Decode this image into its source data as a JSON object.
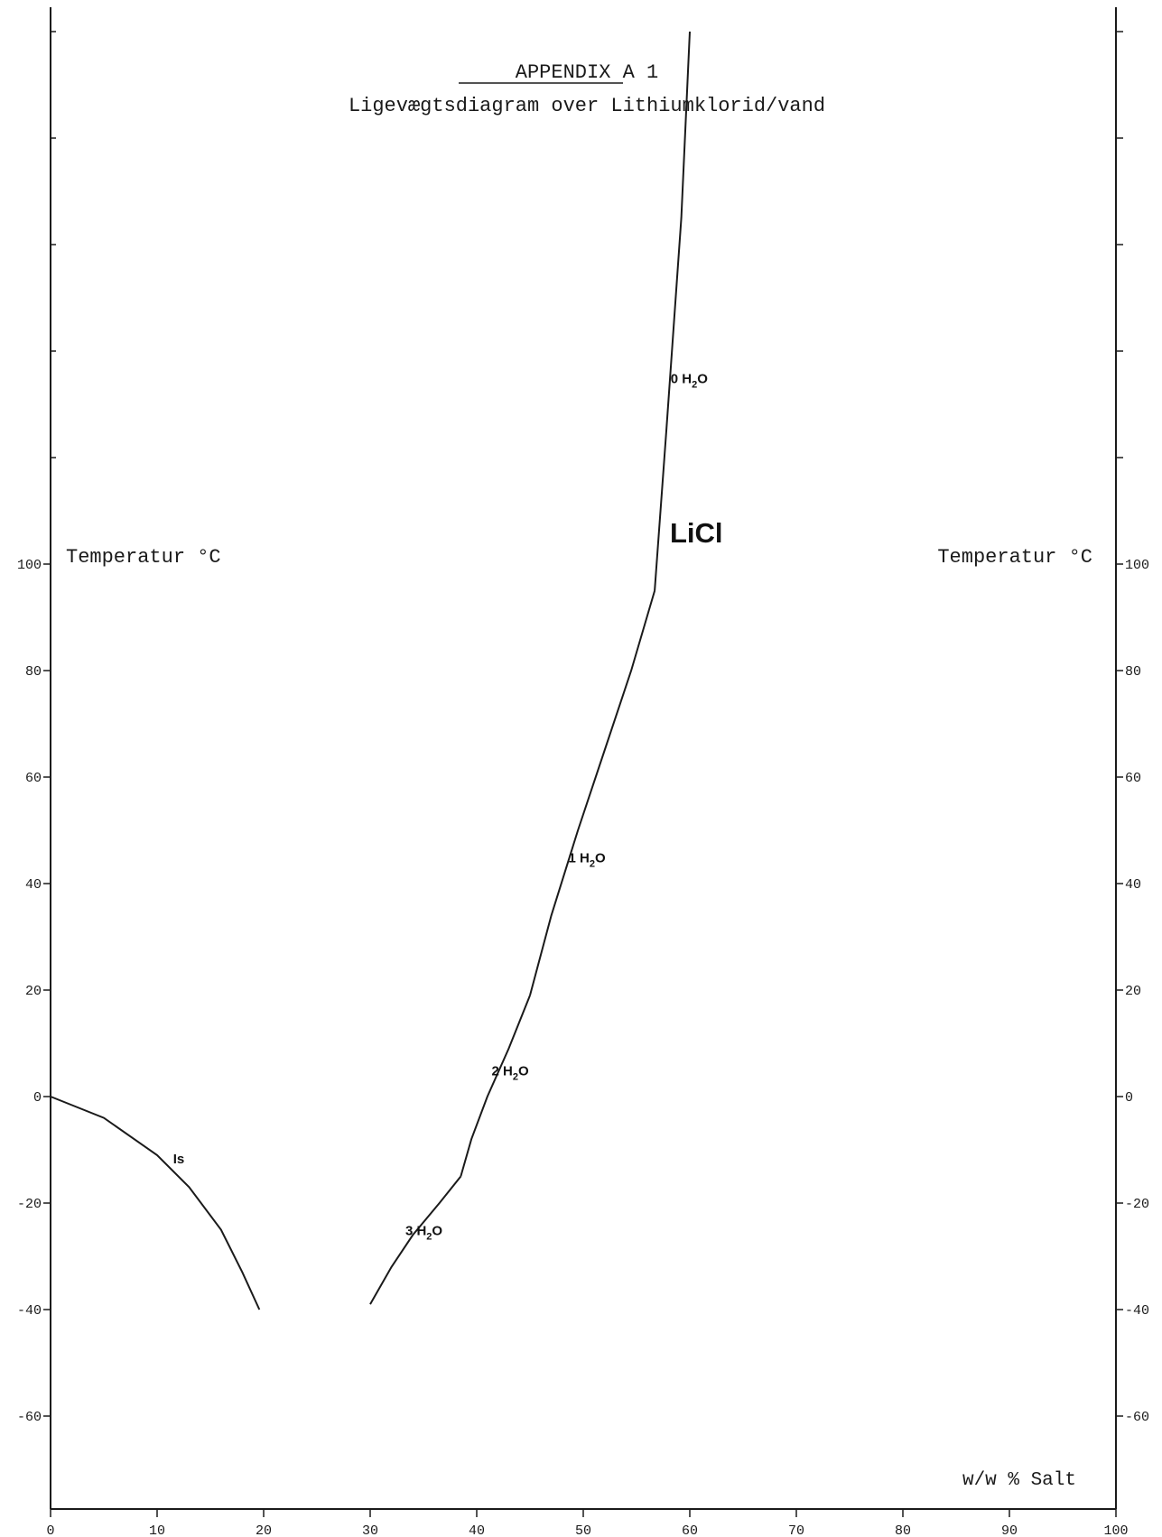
{
  "chart_data": {
    "type": "line",
    "title": "APPENDIX A 1",
    "subtitle": "Ligevægtsdiagram over Lithiumklorid/vand",
    "xlabel": "w/w % Salt",
    "ylabel_left": "Temperatur °C",
    "ylabel_right": "Temperatur °C",
    "xlim": [
      0,
      100
    ],
    "ylim": [
      -75,
      215
    ],
    "x_ticks": [
      0,
      10,
      20,
      30,
      40,
      50,
      60,
      70,
      80,
      90,
      100
    ],
    "y_tick_labels": [
      -60,
      -40,
      -20,
      0,
      20,
      40,
      60,
      80,
      100
    ],
    "compound_label": "LiCl",
    "grid": false,
    "legend": "none",
    "series": [
      {
        "name": "Is",
        "points": [
          [
            0,
            0
          ],
          [
            5,
            -4
          ],
          [
            10,
            -11
          ],
          [
            13,
            -17
          ],
          [
            16,
            -25
          ],
          [
            18,
            -33
          ],
          [
            19.6,
            -40
          ]
        ]
      },
      {
        "name": "3 H2O",
        "points": [
          [
            30,
            -39
          ],
          [
            32,
            -32
          ],
          [
            34,
            -26
          ],
          [
            36.5,
            -20
          ],
          [
            38.5,
            -15
          ]
        ]
      },
      {
        "name": "2 H2O",
        "points": [
          [
            38.5,
            -15
          ],
          [
            39.5,
            -8
          ],
          [
            41,
            0
          ],
          [
            43,
            9
          ],
          [
            45,
            19
          ]
        ]
      },
      {
        "name": "1 H2O",
        "points": [
          [
            45,
            19
          ],
          [
            47,
            34
          ],
          [
            49.5,
            50
          ],
          [
            52,
            65
          ],
          [
            54.5,
            80
          ],
          [
            56.7,
            95
          ]
        ]
      },
      {
        "name": "0 H2O",
        "points": [
          [
            56.7,
            95
          ],
          [
            57.8,
            125
          ],
          [
            59.2,
            165
          ],
          [
            60,
            200
          ]
        ]
      }
    ],
    "annotations": [
      {
        "text": "Is",
        "x": 11.5,
        "y": -12.5
      },
      {
        "text": "3 H",
        "sub": "2",
        "tail": "O",
        "x": 33.3,
        "y": -26
      },
      {
        "text": "2 H",
        "sub": "2",
        "tail": "O",
        "x": 41.4,
        "y": 4
      },
      {
        "text": "1 H",
        "sub": "2",
        "tail": "O",
        "x": 48.6,
        "y": 44
      },
      {
        "text": "0 H",
        "sub": "2",
        "tail": "O",
        "x": 58.2,
        "y": 134
      }
    ]
  }
}
